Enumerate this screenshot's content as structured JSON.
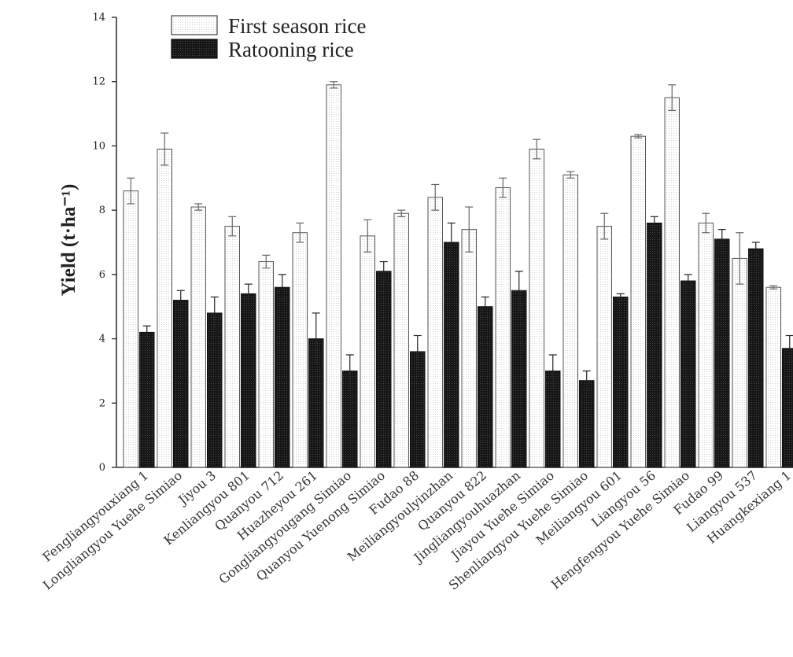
{
  "chart_data": {
    "type": "bar",
    "ylabel": "Yield (t·ha⁻¹)",
    "ylim": [
      0,
      14
    ],
    "yticks": [
      "0",
      "2",
      "4",
      "6",
      "8",
      "10",
      "12",
      "14"
    ],
    "legend_position": "top-left",
    "categories": [
      "Fengliangyouxiang 1",
      "Longliangyou Yuehe Simiao",
      "Jiyou 3",
      "Kenliangyou 801",
      "Quanyou 712",
      "Huazheyou 261",
      "Gongliangyougang Simiao",
      "Quanyou Yuenong Simiao",
      "Fudao 88",
      "Meiliangyoulyinzhan",
      "Quanyou 822",
      "Jingliangyouhuazhan",
      "Jiayou Yuehe Simiao",
      "Shenliangyou Yuehe Simiao",
      "Meiliangyou 601",
      "Liangyou 56",
      "Hengfengyou Yuehe Simiao",
      "Fudao 99",
      "Liangyou 537",
      "Huangkexiang 1"
    ],
    "series": [
      {
        "name": "First season rice",
        "color": "#ffffff",
        "values": [
          8.6,
          9.9,
          8.1,
          7.5,
          6.4,
          7.3,
          11.9,
          7.2,
          7.9,
          8.4,
          7.4,
          8.7,
          9.9,
          9.1,
          7.5,
          10.3,
          11.5,
          7.6,
          6.5,
          5.6
        ],
        "errors": [
          0.4,
          0.5,
          0.1,
          0.3,
          0.2,
          0.3,
          0.1,
          0.5,
          0.1,
          0.4,
          0.7,
          0.3,
          0.3,
          0.1,
          0.4,
          0.05,
          0.4,
          0.3,
          0.8,
          0.05
        ]
      },
      {
        "name": "Ratooning rice",
        "color": "#141414",
        "values": [
          4.2,
          5.2,
          4.8,
          5.4,
          5.6,
          4.0,
          3.0,
          6.1,
          3.6,
          7.0,
          5.0,
          5.5,
          3.0,
          2.7,
          5.3,
          7.6,
          5.8,
          7.1,
          6.8,
          3.7
        ],
        "errors": [
          0.2,
          0.3,
          0.5,
          0.3,
          0.4,
          0.8,
          0.5,
          0.3,
          0.5,
          0.6,
          0.3,
          0.6,
          0.5,
          0.3,
          0.1,
          0.2,
          0.2,
          0.3,
          0.2,
          0.4
        ]
      }
    ]
  }
}
